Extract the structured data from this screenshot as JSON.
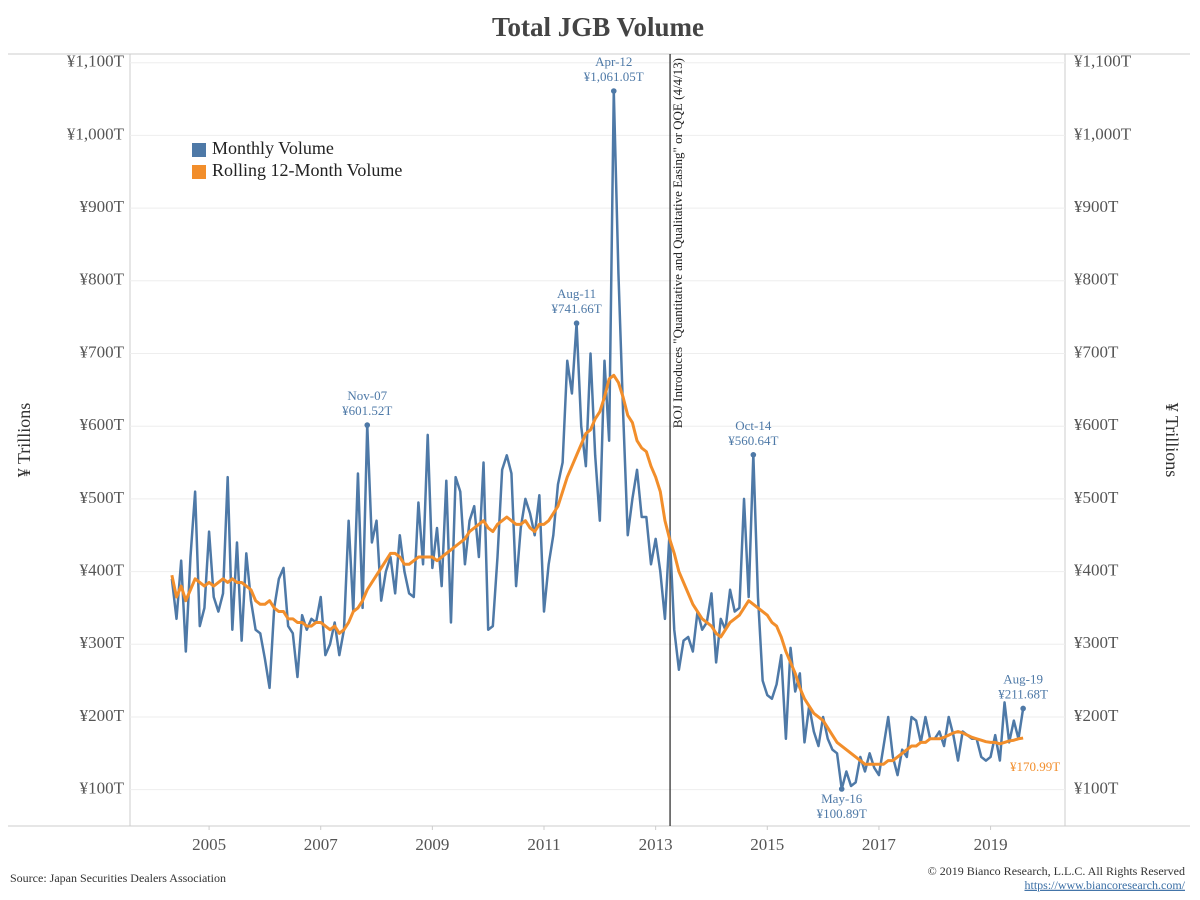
{
  "chart_data": {
    "type": "line",
    "title": "Total JGB Volume",
    "y_label": "¥ Trillions",
    "y2_label": "¥ Trillions",
    "source": "Source: Japan Securities Dealers Association",
    "copyright": "© 2019 Bianco Research, L.L.C. All Rights Reserved",
    "url": "https://www.biancoresearch.com/",
    "event": {
      "x": "2013-04-04",
      "label": "BOJ Introduces \"Quantitative and Qualitative Easing\" or QQE (4/4/13)"
    },
    "legend": "top-left",
    "grid": true,
    "xlim": [
      "2003-08",
      "2020-05"
    ],
    "xticks": [
      2005,
      2007,
      2009,
      2011,
      2013,
      2015,
      2017,
      2019
    ],
    "ylim": [
      50,
      1112
    ],
    "yticks": [
      {
        "value": 100,
        "label": "¥100T"
      },
      {
        "value": 200,
        "label": "¥200T"
      },
      {
        "value": 300,
        "label": "¥300T"
      },
      {
        "value": 400,
        "label": "¥400T"
      },
      {
        "value": 500,
        "label": "¥500T"
      },
      {
        "value": 600,
        "label": "¥600T"
      },
      {
        "value": 700,
        "label": "¥700T"
      },
      {
        "value": 800,
        "label": "¥800T"
      },
      {
        "value": 900,
        "label": "¥900T"
      },
      {
        "value": 1000,
        "label": "¥1,000T"
      },
      {
        "value": 1100,
        "label": "¥1,100T"
      }
    ],
    "x": [
      "2004-05",
      "2004-06",
      "2004-07",
      "2004-08",
      "2004-09",
      "2004-10",
      "2004-11",
      "2004-12",
      "2005-01",
      "2005-02",
      "2005-03",
      "2005-04",
      "2005-05",
      "2005-06",
      "2005-07",
      "2005-08",
      "2005-09",
      "2005-10",
      "2005-11",
      "2005-12",
      "2006-01",
      "2006-02",
      "2006-03",
      "2006-04",
      "2006-05",
      "2006-06",
      "2006-07",
      "2006-08",
      "2006-09",
      "2006-10",
      "2006-11",
      "2006-12",
      "2007-01",
      "2007-02",
      "2007-03",
      "2007-04",
      "2007-05",
      "2007-06",
      "2007-07",
      "2007-08",
      "2007-09",
      "2007-10",
      "2007-11",
      "2007-12",
      "2008-01",
      "2008-02",
      "2008-03",
      "2008-04",
      "2008-05",
      "2008-06",
      "2008-07",
      "2008-08",
      "2008-09",
      "2008-10",
      "2008-11",
      "2008-12",
      "2009-01",
      "2009-02",
      "2009-03",
      "2009-04",
      "2009-05",
      "2009-06",
      "2009-07",
      "2009-08",
      "2009-09",
      "2009-10",
      "2009-11",
      "2009-12",
      "2010-01",
      "2010-02",
      "2010-03",
      "2010-04",
      "2010-05",
      "2010-06",
      "2010-07",
      "2010-08",
      "2010-09",
      "2010-10",
      "2010-11",
      "2010-12",
      "2011-01",
      "2011-02",
      "2011-03",
      "2011-04",
      "2011-05",
      "2011-06",
      "2011-07",
      "2011-08",
      "2011-09",
      "2011-10",
      "2011-11",
      "2011-12",
      "2012-01",
      "2012-02",
      "2012-03",
      "2012-04",
      "2012-05",
      "2012-06",
      "2012-07",
      "2012-08",
      "2012-09",
      "2012-10",
      "2012-11",
      "2012-12",
      "2013-01",
      "2013-02",
      "2013-03",
      "2013-04",
      "2013-05",
      "2013-06",
      "2013-07",
      "2013-08",
      "2013-09",
      "2013-10",
      "2013-11",
      "2013-12",
      "2014-01",
      "2014-02",
      "2014-03",
      "2014-04",
      "2014-05",
      "2014-06",
      "2014-07",
      "2014-08",
      "2014-09",
      "2014-10",
      "2014-11",
      "2014-12",
      "2015-01",
      "2015-02",
      "2015-03",
      "2015-04",
      "2015-05",
      "2015-06",
      "2015-07",
      "2015-08",
      "2015-09",
      "2015-10",
      "2015-11",
      "2015-12",
      "2016-01",
      "2016-02",
      "2016-03",
      "2016-04",
      "2016-05",
      "2016-06",
      "2016-07",
      "2016-08",
      "2016-09",
      "2016-10",
      "2016-11",
      "2016-12",
      "2017-01",
      "2017-02",
      "2017-03",
      "2017-04",
      "2017-05",
      "2017-06",
      "2017-07",
      "2017-08",
      "2017-09",
      "2017-10",
      "2017-11",
      "2017-12",
      "2018-01",
      "2018-02",
      "2018-03",
      "2018-04",
      "2018-05",
      "2018-06",
      "2018-07",
      "2018-08",
      "2018-09",
      "2018-10",
      "2018-11",
      "2018-12",
      "2019-01",
      "2019-02",
      "2019-03",
      "2019-04",
      "2019-05",
      "2019-06",
      "2019-07",
      "2019-08"
    ],
    "series": [
      {
        "name": "Monthly Volume",
        "color": "#4e79a7",
        "values": [
          390,
          335,
          415,
          290,
          420,
          510,
          325,
          350,
          455,
          365,
          345,
          370,
          530,
          320,
          440,
          305,
          425,
          360,
          320,
          315,
          280,
          240,
          350,
          390,
          405,
          325,
          315,
          255,
          340,
          320,
          335,
          330,
          365,
          285,
          300,
          330,
          285,
          320,
          470,
          345,
          535,
          350,
          601.52,
          440,
          470,
          360,
          400,
          420,
          370,
          450,
          400,
          370,
          365,
          495,
          410,
          588,
          405,
          460,
          380,
          525,
          330,
          530,
          510,
          410,
          470,
          490,
          420,
          550,
          320,
          325,
          420,
          540,
          560,
          535,
          380,
          460,
          500,
          480,
          450,
          505,
          345,
          410,
          450,
          520,
          550,
          690,
          645,
          741.66,
          600,
          545,
          700,
          560,
          470,
          690,
          580,
          1061.05,
          810,
          620,
          450,
          500,
          540,
          475,
          475,
          410,
          445,
          400,
          335,
          455,
          320,
          265,
          305,
          310,
          290,
          345,
          320,
          330,
          370,
          275,
          335,
          320,
          375,
          345,
          350,
          500,
          365,
          560.64,
          365,
          250,
          230,
          225,
          245,
          285,
          170,
          295,
          235,
          260,
          165,
          215,
          180,
          160,
          200,
          170,
          155,
          150,
          100.89,
          125,
          105,
          110,
          145,
          125,
          150,
          130,
          120,
          160,
          200,
          145,
          120,
          155,
          145,
          200,
          195,
          165,
          200,
          170,
          170,
          180,
          160,
          200,
          175,
          140,
          180,
          175,
          170,
          170,
          145,
          140,
          145,
          175,
          140,
          220,
          165,
          195,
          170,
          211.68
        ],
        "annotations": [
          {
            "x": "2007-11",
            "value": 601.52,
            "label": "Nov-07",
            "value_label": "¥601.52T"
          },
          {
            "x": "2011-08",
            "value": 741.66,
            "label": "Aug-11",
            "value_label": "¥741.66T"
          },
          {
            "x": "2012-04",
            "value": 1061.05,
            "label": "Apr-12",
            "value_label": "¥1,061.05T"
          },
          {
            "x": "2014-10",
            "value": 560.64,
            "label": "Oct-14",
            "value_label": "¥560.64T"
          },
          {
            "x": "2016-05",
            "value": 100.89,
            "label": "May-16",
            "value_label": "¥100.89T"
          },
          {
            "x": "2019-08",
            "value": 211.68,
            "label": "Aug-19",
            "value_label": "¥211.68T"
          }
        ]
      },
      {
        "name": "Rolling 12-Month Volume",
        "color": "#f28e2b",
        "values": [
          395,
          365,
          380,
          360,
          375,
          390,
          385,
          380,
          385,
          380,
          385,
          390,
          385,
          390,
          385,
          385,
          380,
          375,
          360,
          355,
          355,
          360,
          350,
          345,
          345,
          335,
          335,
          330,
          330,
          325,
          325,
          330,
          330,
          325,
          320,
          325,
          315,
          320,
          330,
          345,
          350,
          360,
          375,
          385,
          395,
          405,
          415,
          425,
          425,
          420,
          410,
          410,
          415,
          420,
          420,
          420,
          420,
          415,
          420,
          425,
          430,
          435,
          440,
          445,
          455,
          460,
          465,
          470,
          460,
          455,
          465,
          470,
          475,
          470,
          465,
          465,
          470,
          460,
          455,
          465,
          465,
          470,
          480,
          490,
          510,
          530,
          545,
          560,
          575,
          590,
          595,
          610,
          620,
          640,
          665,
          670,
          660,
          640,
          615,
          605,
          580,
          570,
          565,
          545,
          530,
          510,
          470,
          445,
          425,
          400,
          385,
          370,
          355,
          345,
          335,
          330,
          325,
          315,
          310,
          320,
          330,
          335,
          340,
          350,
          360,
          355,
          350,
          345,
          340,
          330,
          325,
          310,
          290,
          275,
          260,
          240,
          225,
          215,
          205,
          200,
          195,
          185,
          175,
          165,
          160,
          155,
          150,
          145,
          140,
          135,
          135,
          135,
          135,
          135,
          140,
          140,
          145,
          150,
          155,
          160,
          160,
          165,
          165,
          170,
          170,
          170,
          172,
          175,
          178,
          180,
          178,
          175,
          172,
          170,
          168,
          166,
          165,
          165,
          163,
          165,
          167,
          168,
          170,
          170.99
        ],
        "annotations": [
          {
            "x": "2019-08",
            "value": 170.99,
            "value_label": "¥170.99T"
          }
        ]
      }
    ]
  }
}
